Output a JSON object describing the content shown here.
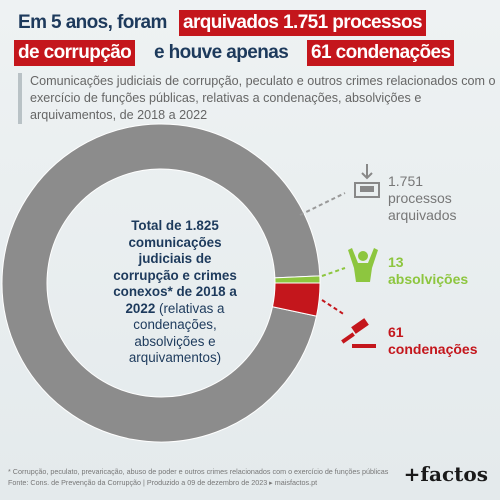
{
  "chart_data": {
    "type": "donut",
    "title_parts": [
      "Em 5 anos, foram",
      "arquivados 1.751 processos",
      "de corrupção",
      "e houve apenas",
      "61 condenações"
    ],
    "subtitle": "Comunicações judiciais de corrupção, peculato e outros crimes relacionados com o exercício de funções públicas, relativas a condenações, absolvições e arquivamentos, de 2018 a 2022",
    "center_text": {
      "bold": "Total de 1.825 comunicações judiciais de corrupção e crimes conexos* de 2018 a 2022",
      "regular": "(relativas a condenações, absolvições e arquivamentos)"
    },
    "categories": [
      "processos arquivados",
      "absolvições",
      "condenações"
    ],
    "values": [
      1751,
      13,
      61
    ],
    "value_labels": [
      "1.751",
      "13",
      "61"
    ],
    "colors": [
      "#8c8c8c",
      "#8dc63f",
      "#c4161c"
    ],
    "footnote": "* Corrupção, peculato, prevaricação, abuso de poder e outros crimes relacionados com o exercício de funções públicas",
    "source": "Fonte: Cons. de Prevenção da Corrupção | Produzido a 09 de dezembro de 2023 ▸ maisfactos.pt",
    "logo": "+factos"
  }
}
